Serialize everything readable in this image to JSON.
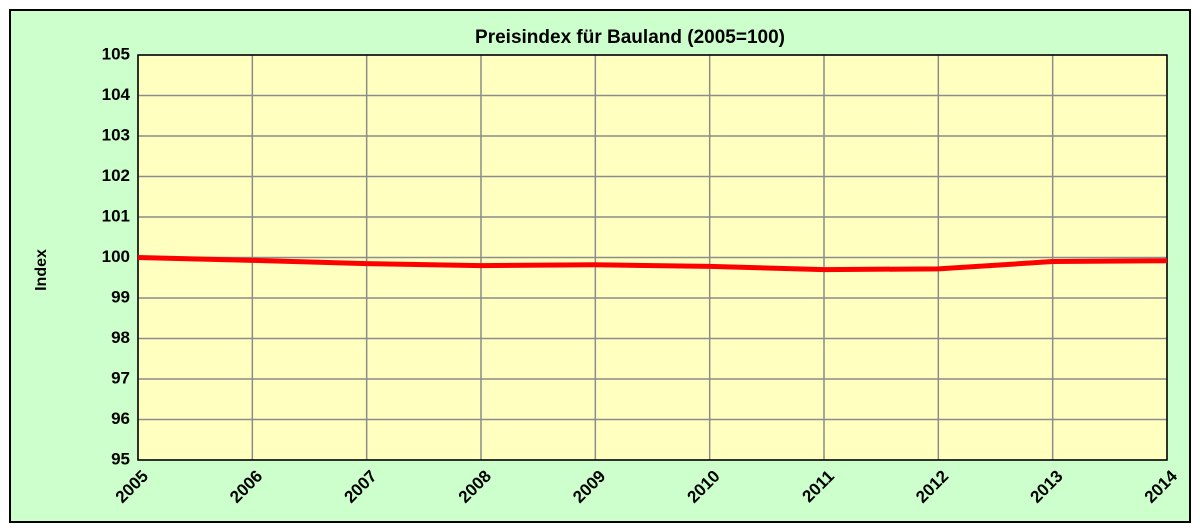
{
  "chart_data": {
    "type": "line",
    "title": "Preisindex für Bauland (2005=100)",
    "y_label": "Index",
    "x": [
      2005,
      2006,
      2007,
      2008,
      2009,
      2010,
      2011,
      2012,
      2013,
      2014
    ],
    "series": [
      {
        "name": "Preisindex",
        "color": "#ff0000",
        "values": [
          100,
          99.93,
          99.85,
          99.8,
          99.82,
          99.78,
          99.7,
          99.72,
          99.9,
          99.92
        ]
      }
    ],
    "xlim": [
      2005,
      2014
    ],
    "xticks": [
      2005,
      2006,
      2007,
      2008,
      2009,
      2010,
      2011,
      2012,
      2013,
      2014
    ],
    "ylim": [
      95,
      105
    ],
    "yticks": [
      95,
      96,
      97,
      98,
      99,
      100,
      101,
      102,
      103,
      104,
      105
    ],
    "grid": true
  }
}
